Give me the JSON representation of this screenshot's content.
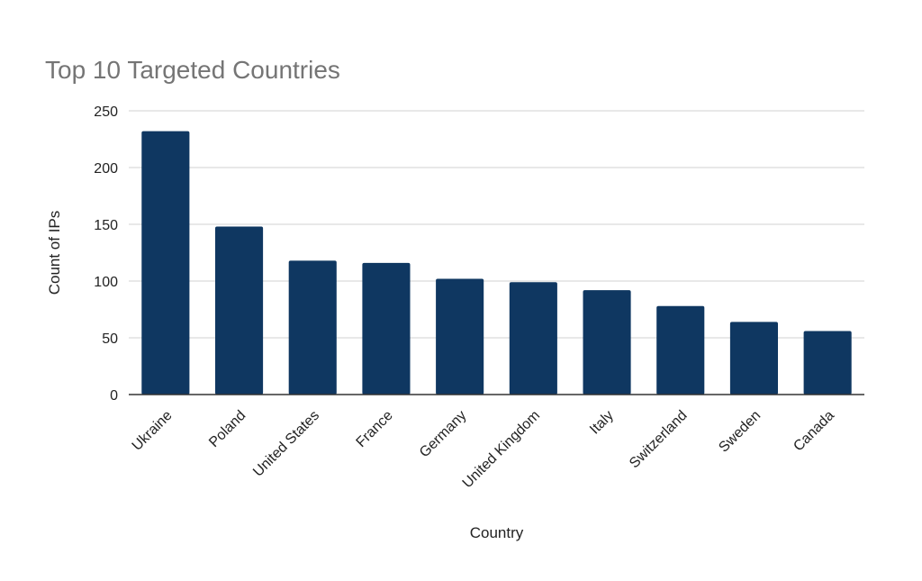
{
  "chart_data": {
    "type": "bar",
    "title": "Top 10 Targeted Countries",
    "xlabel": "Country",
    "ylabel": "Count of IPs",
    "categories": [
      "Ukraine",
      "Poland",
      "United States",
      "France",
      "Germany",
      "United Kingdom",
      "Italy",
      "Switzerland",
      "Sweden",
      "Canada"
    ],
    "values": [
      232,
      148,
      118,
      116,
      102,
      99,
      92,
      78,
      64,
      56
    ],
    "ylim": [
      0,
      250
    ],
    "yticks": [
      0,
      50,
      100,
      150,
      200,
      250
    ],
    "grid": true,
    "legend": "none",
    "bar_color": "#0f3761"
  }
}
